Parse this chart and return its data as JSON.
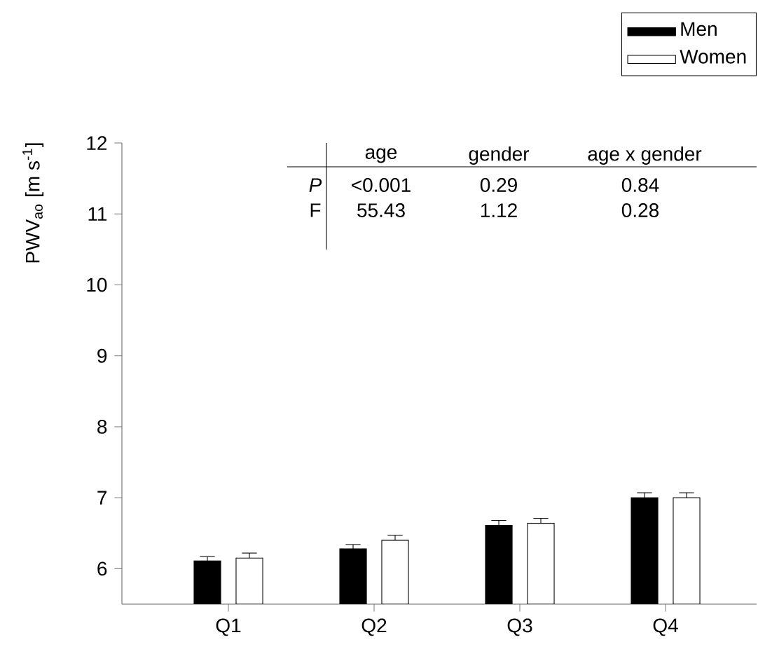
{
  "chart_data": {
    "type": "bar",
    "ylabel": "PWV$_{ao}$ [m s$^{-1}$]",
    "categories": [
      "Q1",
      "Q2",
      "Q3",
      "Q4"
    ],
    "series": [
      {
        "name": "Men",
        "color": "#000000",
        "values": [
          6.11,
          6.28,
          6.61,
          7.0
        ],
        "errors": [
          [
            6.11,
            6.17
          ],
          [
            6.28,
            6.34
          ],
          [
            6.61,
            6.68
          ],
          [
            7.0,
            7.07
          ]
        ]
      },
      {
        "name": "Women",
        "color": "#ffffff",
        "values": [
          6.15,
          6.4,
          6.64,
          7.0
        ],
        "errors": [
          [
            6.15,
            6.22
          ],
          [
            6.4,
            6.47
          ],
          [
            6.64,
            6.71
          ],
          [
            7.0,
            7.07
          ]
        ]
      }
    ],
    "ylim": [
      5.5,
      12
    ],
    "yticks": [
      6,
      7,
      8,
      9,
      10,
      11,
      12
    ],
    "legend": "top right",
    "annotations": [
      "age",
      "gender",
      "age x gender",
      "*P*",
      "<0.001",
      "0.29",
      "0.84",
      "F",
      "55.43",
      "1.12",
      "0.28"
    ]
  }
}
